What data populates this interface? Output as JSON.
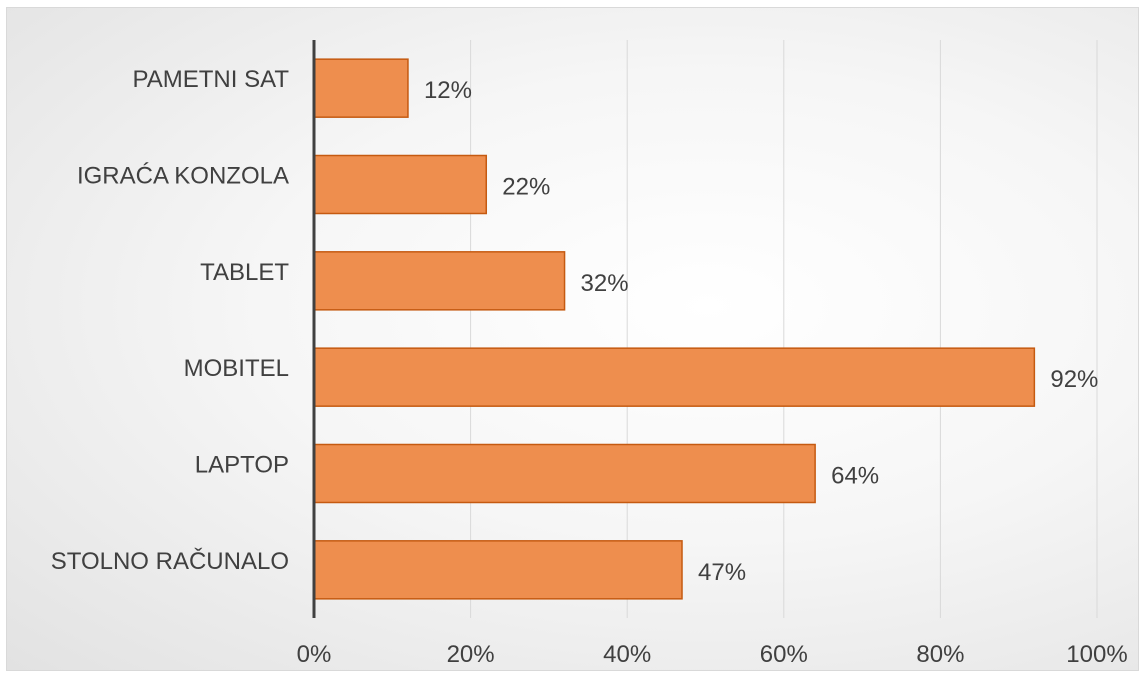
{
  "chart_data": {
    "type": "bar",
    "orientation": "horizontal",
    "categories": [
      "PAMETNI SAT",
      "IGRAĆA KONZOLA",
      "TABLET",
      "MOBITEL",
      "LAPTOP",
      "STOLNO RAČUNALO"
    ],
    "values": [
      12,
      22,
      32,
      92,
      64,
      47
    ],
    "data_labels": [
      "12%",
      "22%",
      "32%",
      "92%",
      "64%",
      "47%"
    ],
    "x_ticks": [
      "0%",
      "20%",
      "40%",
      "60%",
      "80%",
      "100%"
    ],
    "xlim": [
      0,
      100
    ],
    "grid": true,
    "bar_color": "#EE8E4E",
    "bar_border_color": "#C55A11",
    "axis_color": "#404040",
    "gridline_color": "#D9D9D9"
  }
}
